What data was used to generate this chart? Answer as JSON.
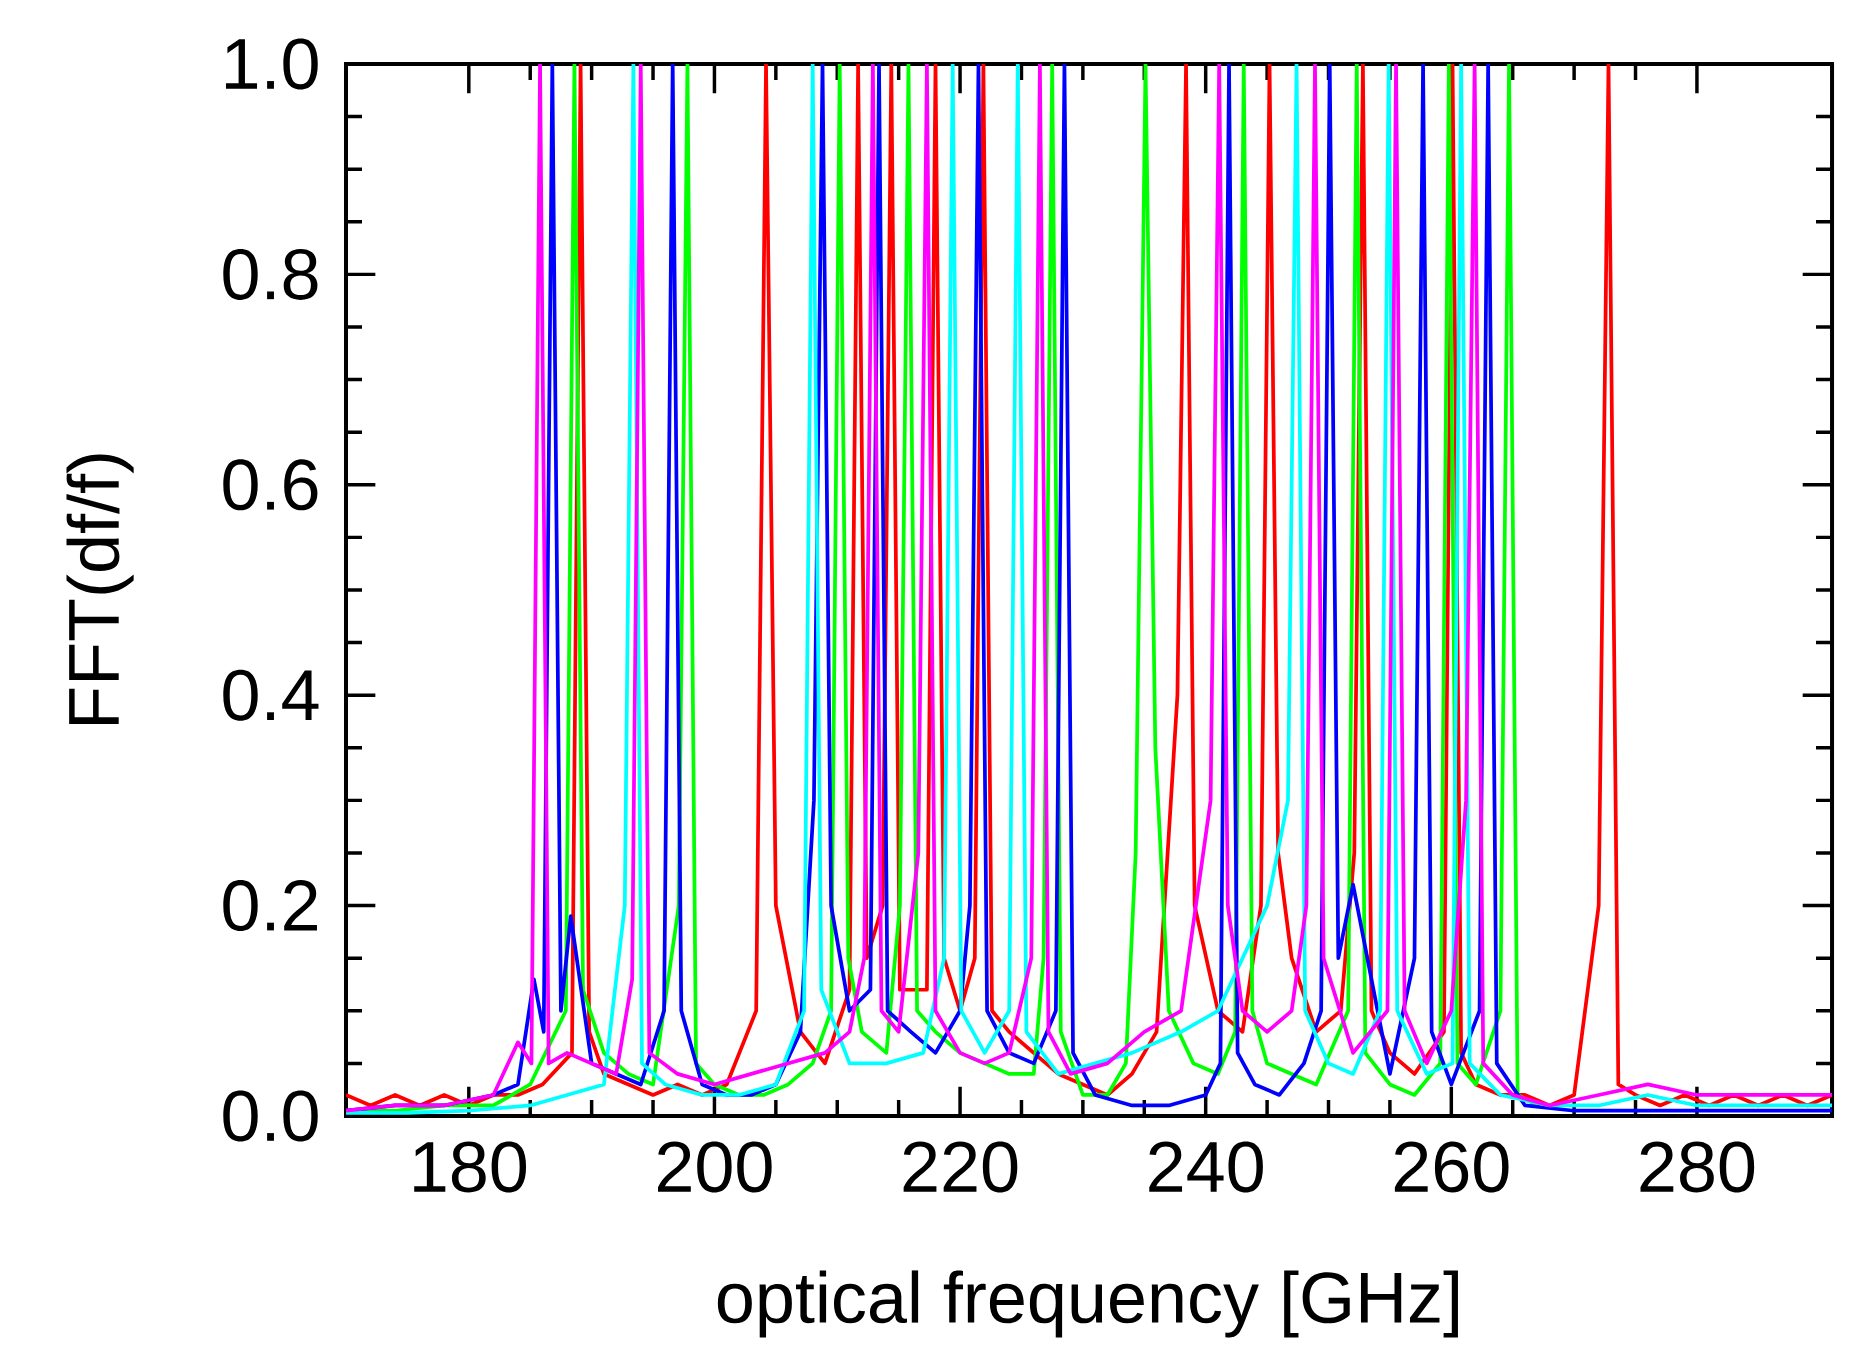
{
  "chart_data": {
    "type": "line",
    "xlabel": "optical frequency [GHz]",
    "ylabel": "FFT(df/f)",
    "xlim": [
      170,
      291
    ],
    "ylim": [
      0,
      1
    ],
    "xticks": [
      180,
      200,
      220,
      240,
      260,
      280
    ],
    "yticks": [
      {
        "value": 0,
        "label": "0.0"
      },
      {
        "value": 0.2,
        "label": "0.2"
      },
      {
        "value": 0.4,
        "label": "0.4"
      },
      {
        "value": 0.6,
        "label": "0.6"
      },
      {
        "value": 0.8,
        "label": "0.8"
      },
      {
        "value": 1,
        "label": "1.0"
      }
    ],
    "series": [
      {
        "color": "#ff0000",
        "x": [
          170,
          172,
          174,
          176,
          178,
          180,
          182,
          184,
          186,
          188.4,
          189.1,
          189.8,
          191,
          193,
          195,
          197,
          199,
          201,
          203.4,
          204.2,
          205,
          207,
          209,
          211,
          211.7,
          212.4,
          213.7,
          214.4,
          215.1,
          217.3,
          218,
          218.7,
          220,
          221.2,
          221.9,
          222.6,
          224,
          226,
          228,
          230,
          232,
          234,
          236,
          237.7,
          238.4,
          239.1,
          241,
          243,
          244.5,
          245.2,
          245.9,
          247,
          249,
          251,
          252.1,
          252.8,
          253.5,
          255,
          257,
          259.4,
          260.1,
          260.8,
          262,
          264,
          266,
          268,
          270,
          272,
          272.8,
          273.6,
          275,
          277,
          279,
          281,
          283,
          285,
          287,
          289,
          291
        ],
        "values": [
          0.02,
          0.01,
          0.02,
          0.01,
          0.02,
          0.01,
          0.02,
          0.02,
          0.03,
          0.06,
          1.0,
          0.08,
          0.04,
          0.03,
          0.02,
          0.03,
          0.02,
          0.03,
          0.1,
          1.0,
          0.2,
          0.08,
          0.05,
          0.12,
          1.0,
          0.15,
          0.2,
          1.0,
          0.12,
          0.12,
          1.0,
          0.15,
          0.1,
          0.15,
          1.0,
          0.1,
          0.08,
          0.06,
          0.04,
          0.03,
          0.02,
          0.04,
          0.08,
          0.4,
          1.0,
          0.2,
          0.1,
          0.08,
          0.2,
          1.0,
          0.25,
          0.15,
          0.08,
          0.1,
          0.25,
          1.0,
          0.1,
          0.06,
          0.04,
          0.08,
          1.0,
          0.06,
          0.03,
          0.02,
          0.02,
          0.01,
          0.02,
          0.2,
          1.0,
          0.03,
          0.02,
          0.01,
          0.02,
          0.01,
          0.02,
          0.01,
          0.02,
          0.01,
          0.02
        ]
      },
      {
        "color": "#00ff00",
        "x": [
          170,
          174,
          178,
          182,
          185,
          187.9,
          188.6,
          189.3,
          191,
          193,
          195,
          197.1,
          197.8,
          198.5,
          200,
          202,
          204,
          206,
          208,
          209.5,
          210.2,
          210.9,
          212,
          214,
          215.1,
          215.8,
          216.5,
          218,
          220,
          222,
          224,
          226,
          226.8,
          227.5,
          228.2,
          230,
          232,
          233.5,
          234.3,
          235.1,
          235.9,
          237,
          239,
          241,
          242.4,
          243.1,
          243.8,
          245,
          247,
          249,
          251.6,
          252.3,
          253,
          255,
          257,
          259.1,
          259.8,
          260.5,
          262,
          264,
          264.7,
          265.4,
          267
        ],
        "values": [
          0.005,
          0.005,
          0.01,
          0.01,
          0.03,
          0.1,
          1.0,
          0.12,
          0.06,
          0.04,
          0.03,
          0.2,
          1.0,
          0.05,
          0.03,
          0.02,
          0.02,
          0.03,
          0.05,
          0.1,
          1.0,
          0.15,
          0.08,
          0.06,
          0.2,
          1.0,
          0.1,
          0.08,
          0.06,
          0.05,
          0.04,
          0.04,
          0.15,
          1.0,
          0.08,
          0.02,
          0.02,
          0.05,
          0.25,
          1.0,
          0.35,
          0.1,
          0.05,
          0.04,
          0.08,
          1.0,
          0.1,
          0.05,
          0.04,
          0.03,
          0.1,
          1.0,
          0.06,
          0.03,
          0.02,
          0.05,
          1.0,
          0.05,
          0.03,
          0.1,
          1.0,
          0.02,
          0.01
        ]
      },
      {
        "color": "#0000ff",
        "x": [
          170,
          174,
          178,
          182,
          184,
          185.3,
          186.1,
          186.8,
          187.5,
          188.3,
          190,
          192,
          194,
          195.9,
          196.6,
          197.3,
          199,
          201,
          203,
          205,
          207,
          208.1,
          208.8,
          209.5,
          211,
          212.7,
          213.4,
          214.1,
          216,
          218,
          220,
          220.8,
          221.5,
          222.2,
          224,
          226,
          227.8,
          228.5,
          229.2,
          231,
          234,
          237,
          240,
          241.2,
          241.9,
          242.6,
          244,
          246,
          248,
          249.4,
          250.1,
          250.8,
          252,
          254,
          255,
          257,
          257.7,
          258.4,
          260,
          262.3,
          263,
          263.7,
          266,
          270,
          275,
          280,
          285,
          291
        ],
        "values": [
          0.005,
          0.01,
          0.01,
          0.02,
          0.03,
          0.13,
          0.08,
          1.0,
          0.1,
          0.19,
          0.05,
          0.04,
          0.03,
          0.1,
          1.0,
          0.1,
          0.03,
          0.02,
          0.02,
          0.03,
          0.08,
          0.3,
          1.0,
          0.2,
          0.1,
          0.12,
          1.0,
          0.1,
          0.08,
          0.06,
          0.1,
          0.2,
          1.0,
          0.1,
          0.06,
          0.05,
          0.1,
          1.0,
          0.06,
          0.02,
          0.01,
          0.01,
          0.02,
          0.05,
          1.0,
          0.06,
          0.03,
          0.02,
          0.05,
          0.1,
          1.0,
          0.15,
          0.22,
          0.1,
          0.04,
          0.15,
          1.0,
          0.08,
          0.03,
          0.1,
          1.0,
          0.05,
          0.01,
          0.005,
          0.005,
          0.005,
          0.005,
          0.005
        ]
      },
      {
        "color": "#00ffff",
        "x": [
          170,
          175,
          180,
          185,
          188,
          191,
          192.7,
          193.4,
          194.1,
          196,
          199,
          202,
          205,
          207.3,
          208,
          208.7,
          211,
          214,
          217,
          218.7,
          219.4,
          220.1,
          222,
          224,
          224.7,
          225.4,
          228,
          231,
          234,
          238,
          241,
          243,
          245,
          246.7,
          247.4,
          248.1,
          250,
          252,
          254.2,
          254.9,
          255.6,
          258,
          260.1,
          260.8,
          261.5,
          264,
          268,
          272,
          276,
          280,
          285,
          291
        ],
        "values": [
          0.003,
          0.003,
          0.005,
          0.01,
          0.02,
          0.03,
          0.2,
          1.0,
          0.05,
          0.03,
          0.02,
          0.02,
          0.03,
          0.1,
          1.0,
          0.12,
          0.05,
          0.05,
          0.06,
          0.15,
          1.0,
          0.1,
          0.06,
          0.1,
          1.0,
          0.08,
          0.04,
          0.05,
          0.06,
          0.08,
          0.1,
          0.15,
          0.2,
          0.3,
          1.0,
          0.1,
          0.05,
          0.04,
          0.1,
          1.0,
          0.1,
          0.04,
          0.05,
          1.0,
          0.05,
          0.02,
          0.01,
          0.01,
          0.02,
          0.01,
          0.01,
          0.01
        ]
      },
      {
        "color": "#ff00ff",
        "x": [
          170,
          174,
          178,
          182,
          184,
          185.1,
          185.8,
          186.5,
          188,
          190,
          192,
          193.3,
          194,
          194.7,
          197,
          200,
          203,
          206,
          209,
          211,
          212.2,
          212.9,
          213.6,
          215,
          216.6,
          217.3,
          218,
          220,
          222,
          224,
          225.8,
          226.5,
          227.2,
          229,
          232,
          235,
          238,
          240.4,
          241.1,
          241.8,
          243,
          245,
          247,
          248.2,
          248.9,
          249.6,
          252,
          254.8,
          255.5,
          256.2,
          258,
          260,
          261.2,
          261.9,
          262.6,
          265,
          268,
          272,
          276,
          280,
          284,
          288,
          291
        ],
        "values": [
          0.005,
          0.01,
          0.01,
          0.02,
          0.07,
          0.05,
          1.0,
          0.05,
          0.06,
          0.05,
          0.04,
          0.13,
          1.0,
          0.06,
          0.04,
          0.03,
          0.04,
          0.05,
          0.06,
          0.08,
          0.15,
          1.0,
          0.1,
          0.08,
          0.25,
          1.0,
          0.1,
          0.06,
          0.05,
          0.06,
          0.15,
          1.0,
          0.08,
          0.04,
          0.05,
          0.08,
          0.1,
          0.3,
          1.0,
          0.2,
          0.1,
          0.08,
          0.1,
          0.2,
          1.0,
          0.15,
          0.06,
          0.1,
          1.0,
          0.1,
          0.05,
          0.1,
          0.3,
          1.0,
          0.05,
          0.02,
          0.01,
          0.02,
          0.03,
          0.02,
          0.02,
          0.02,
          0.02
        ]
      }
    ]
  }
}
